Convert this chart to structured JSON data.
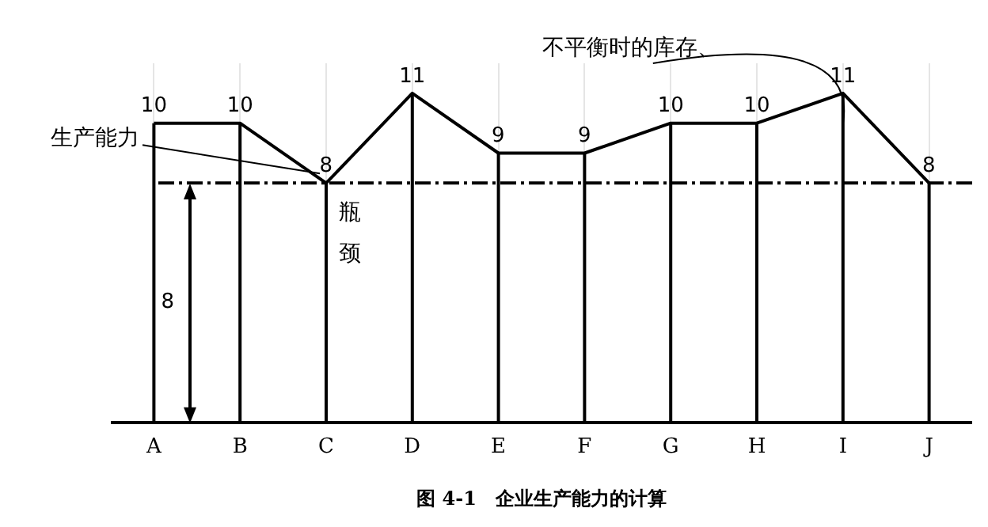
{
  "chart_data": {
    "type": "line",
    "title": "图 4-1　企业生产能力的计算",
    "categories": [
      "A",
      "B",
      "C",
      "D",
      "E",
      "F",
      "G",
      "H",
      "I",
      "J"
    ],
    "series": [
      {
        "color": "#000000",
        "values": [
          10,
          10,
          8,
          11,
          9,
          9,
          10,
          10,
          11,
          8
        ]
      }
    ],
    "tick_labels": "x",
    "grid": "x",
    "legend": false,
    "marker": "none",
    "line_style": "solid",
    "data_labels": true,
    "ref_lines": [
      {
        "axis": "y",
        "value": 8,
        "label": "8",
        "line_style": "dashed",
        "color": "#000000"
      }
    ],
    "annotations": [
      {
        "text": "生产能力",
        "x": "C",
        "y": 8
      },
      "不平衡时的库存、",
      "瓶颈"
    ]
  }
}
